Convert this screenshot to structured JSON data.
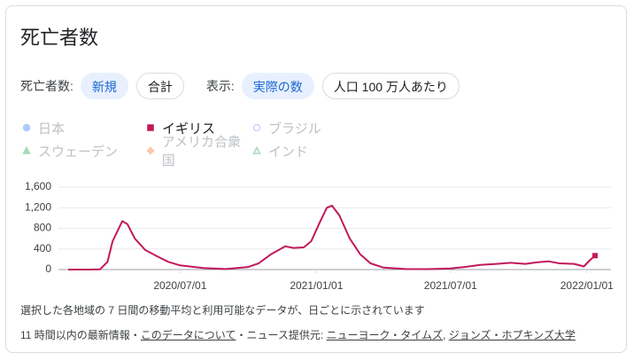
{
  "title": "死亡者数",
  "filters": [
    {
      "label": "死亡者数:",
      "options": [
        "新規",
        "合計"
      ],
      "selected": 0
    },
    {
      "label": "表示:",
      "options": [
        "実際の数",
        "人口 100 万人あたり"
      ],
      "selected": 0
    }
  ],
  "chart_data": {
    "type": "line",
    "x": [
      "2020/02/01",
      "2020/03/01",
      "2020/03/15",
      "2020/03/25",
      "2020/04/01",
      "2020/04/14",
      "2020/04/21",
      "2020/05/01",
      "2020/05/15",
      "2020/06/01",
      "2020/06/15",
      "2020/07/01",
      "2020/08/01",
      "2020/09/01",
      "2020/10/01",
      "2020/10/15",
      "2020/11/01",
      "2020/11/20",
      "2020/12/01",
      "2020/12/15",
      "2020/12/25",
      "2021/01/05",
      "2021/01/15",
      "2021/01/22",
      "2021/02/01",
      "2021/02/15",
      "2021/03/01",
      "2021/03/15",
      "2021/04/01",
      "2021/05/01",
      "2021/06/01",
      "2021/07/01",
      "2021/07/20",
      "2021/08/10",
      "2021/09/01",
      "2021/09/20",
      "2021/10/10",
      "2021/10/25",
      "2021/11/10",
      "2021/11/25",
      "2021/12/15",
      "2021/12/28",
      "2022/01/05",
      "2022/01/12"
    ],
    "series": [
      {
        "name": "イギリス",
        "color": "#c2185b",
        "marker": "square",
        "values": [
          0,
          0,
          5,
          150,
          550,
          940,
          880,
          600,
          380,
          250,
          150,
          80,
          30,
          10,
          50,
          120,
          300,
          450,
          420,
          430,
          550,
          900,
          1200,
          1240,
          1050,
          600,
          300,
          120,
          40,
          10,
          8,
          20,
          50,
          90,
          110,
          130,
          110,
          140,
          160,
          120,
          110,
          60,
          180,
          270
        ]
      }
    ],
    "inactive_series": [
      {
        "name": "日本",
        "color": "#aecbfa",
        "marker": "circle"
      },
      {
        "name": "ブラジル",
        "color": "#d7cdf5",
        "marker": "hollow-circle"
      },
      {
        "name": "スウェーデン",
        "color": "#a8dab5",
        "marker": "triangle"
      },
      {
        "name": "アメリカ合衆国",
        "color": "#fdc6a8",
        "marker": "diamond"
      },
      {
        "name": "インド",
        "color": "#a8dab5",
        "marker": "hollow-triangle"
      }
    ],
    "xlim": [
      "2020/02/01",
      "2022/01/12"
    ],
    "xticks": [
      "2020/07/01",
      "2021/01/01",
      "2021/07/01",
      "2022/01/01"
    ],
    "ylim": [
      0,
      1600
    ],
    "yticks": [
      0,
      400,
      800,
      {
        "value": 1200,
        "label": "1,200"
      },
      {
        "value": 1600,
        "label": "1,600"
      }
    ],
    "grid": true
  },
  "note": "選択した各地域の 7 日間の移動平均と利用可能なデータが、日ごとに示されています",
  "sources": [
    {
      "text": "11 時間以内の最新情報・",
      "link": false
    },
    {
      "text": "このデータについて",
      "link": true
    },
    {
      "text": "・ニュース提供元: ",
      "link": false
    },
    {
      "text": "ニューヨーク・タイムズ",
      "link": true
    },
    {
      "text": ", ",
      "link": false
    },
    {
      "text": "ジョンズ・ホプキンズ大学",
      "link": true
    }
  ]
}
